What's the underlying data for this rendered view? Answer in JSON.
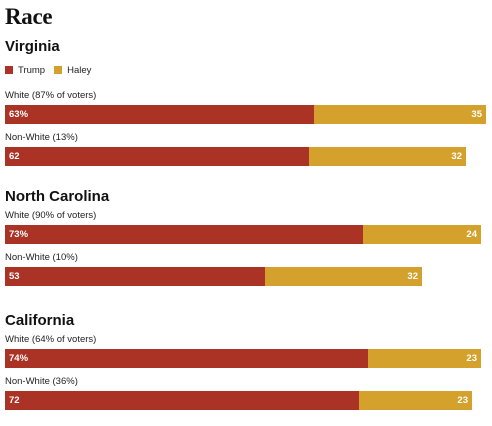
{
  "page_title": "Race",
  "legend": {
    "items": [
      {
        "label": "Trump",
        "color": "#ab3325"
      },
      {
        "label": "Haley",
        "color": "#d3a12c"
      }
    ]
  },
  "chart_data": [
    {
      "type": "bar",
      "title": "Virginia",
      "orientation": "horizontal-stacked",
      "categories": [
        "White (87% of voters)",
        "Non-White (13%)"
      ],
      "series": [
        {
          "name": "Trump",
          "values": [
            63,
            62
          ],
          "labels": [
            "63%",
            "62"
          ]
        },
        {
          "name": "Haley",
          "values": [
            35,
            32
          ],
          "labels": [
            "35",
            "32"
          ]
        }
      ]
    },
    {
      "type": "bar",
      "title": "North Carolina",
      "orientation": "horizontal-stacked",
      "categories": [
        "White (90% of voters)",
        "Non-White (10%)"
      ],
      "series": [
        {
          "name": "Trump",
          "values": [
            73,
            53
          ],
          "labels": [
            "73%",
            "53"
          ]
        },
        {
          "name": "Haley",
          "values": [
            24,
            32
          ],
          "labels": [
            "24",
            "32"
          ]
        }
      ]
    },
    {
      "type": "bar",
      "title": "California",
      "orientation": "horizontal-stacked",
      "categories": [
        "White (64% of voters)",
        "Non-White (36%)"
      ],
      "series": [
        {
          "name": "Trump",
          "values": [
            74,
            72
          ],
          "labels": [
            "74%",
            "72"
          ]
        },
        {
          "name": "Haley",
          "values": [
            23,
            23
          ],
          "labels": [
            "23",
            "23"
          ]
        }
      ]
    }
  ]
}
